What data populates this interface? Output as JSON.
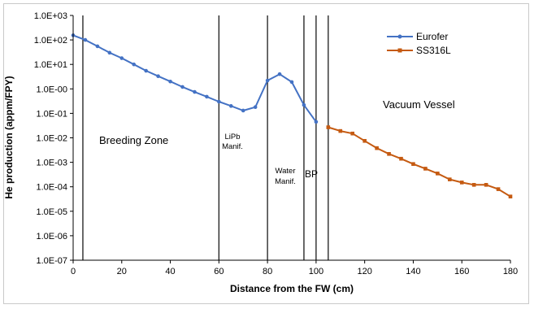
{
  "chart_data": {
    "type": "line",
    "xlabel": "Distance from the FW (cm)",
    "ylabel": "He production (appm/FPY)",
    "xlim": [
      0,
      180
    ],
    "ylim_exponents": [
      -7,
      3
    ],
    "y_scale": "log",
    "x_ticks": [
      "0",
      "20",
      "40",
      "60",
      "80",
      "100",
      "120",
      "140",
      "160",
      "180"
    ],
    "y_ticks": [
      "1.0E-07",
      "1.0E-06",
      "1.0E-05",
      "1.0E-04",
      "1.0E-03",
      "1.0E-02",
      "1.0E-01",
      "1.0E-00",
      "1.0E+01",
      "1.0E+02",
      "1.0E+03"
    ],
    "legend_position": "top-right",
    "boundaries": [
      4,
      60,
      80,
      95,
      100,
      105
    ],
    "region_labels": {
      "breeding_zone": "Breeding Zone",
      "lipb_line1": "LiPb",
      "lipb_line2": "Manif.",
      "water_line1": "Water",
      "water_line2": "Manif.",
      "bp": "BP",
      "vacuum_vessel": "Vacuum Vessel"
    },
    "series": [
      {
        "name": "Eurofer",
        "color": "#4472c4",
        "marker": "circle",
        "x": [
          0,
          5,
          10,
          15,
          20,
          25,
          30,
          35,
          40,
          45,
          50,
          55,
          60,
          65,
          70,
          75,
          80,
          85,
          90,
          95,
          100
        ],
        "y": [
          155,
          100,
          55,
          30,
          18,
          10,
          5.5,
          3.3,
          2.0,
          1.2,
          0.75,
          0.48,
          0.3,
          0.2,
          0.13,
          0.18,
          2.2,
          4.0,
          1.9,
          0.22,
          0.045
        ]
      },
      {
        "name": "SS316L",
        "color": "#c55a11",
        "marker": "square",
        "x": [
          105,
          110,
          115,
          120,
          125,
          130,
          135,
          140,
          145,
          150,
          155,
          160,
          165,
          170,
          175,
          180
        ],
        "y": [
          0.027,
          0.019,
          0.015,
          0.0075,
          0.0038,
          0.0022,
          0.0014,
          0.00085,
          0.00055,
          0.00035,
          0.0002,
          0.00015,
          0.00012,
          0.00012,
          8e-05,
          4e-05
        ]
      }
    ]
  }
}
